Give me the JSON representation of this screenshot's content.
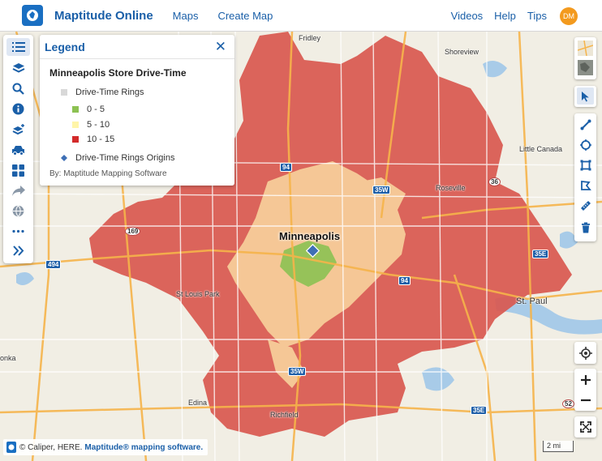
{
  "header": {
    "app_title": "Maptitude Online",
    "nav_left": [
      "Maps",
      "Create Map"
    ],
    "nav_right": [
      "Videos",
      "Help",
      "Tips"
    ],
    "avatar_initials": "DM"
  },
  "legend": {
    "title": "Legend",
    "map_title": "Minneapolis Store Drive-Time",
    "layer_name": "Drive-Time Rings",
    "bins": [
      {
        "label": "0 - 5",
        "color": "#8cc152"
      },
      {
        "label": "5 - 10",
        "color": "#fff5a8"
      },
      {
        "label": "10 - 15",
        "color": "#d32a2a"
      }
    ],
    "origins_label": "Drive-Time Rings Origins",
    "credit": "By: Maptitude Mapping Software"
  },
  "map": {
    "city": "Minneapolis",
    "labels": {
      "fridley": "Fridley",
      "shoreview": "Shoreview",
      "roseville": "Roseville",
      "little_canada": "Little Canada",
      "st_louis_park": "St Louis Park",
      "st_paul": "St. Paul",
      "edina": "Edina",
      "richfield": "Richfield",
      "onka": "onka"
    },
    "shields": {
      "s94_a": "94",
      "s35w_a": "35W",
      "s36": "36",
      "s189": "169",
      "s494": "494",
      "s94_b": "94",
      "s35e_a": "35E",
      "s35w_b": "35W",
      "s35e_b": "35E",
      "s52": "52"
    },
    "colors": {
      "ring_10_15": "#d9584f",
      "ring_5_10": "#f5c796",
      "ring_0_5": "#8cc152",
      "origin": "#3e6fb5"
    }
  },
  "attribution": {
    "text": "© Caliper, HERE.",
    "link": "Maptitude® mapping software."
  },
  "scale": "2 mi"
}
